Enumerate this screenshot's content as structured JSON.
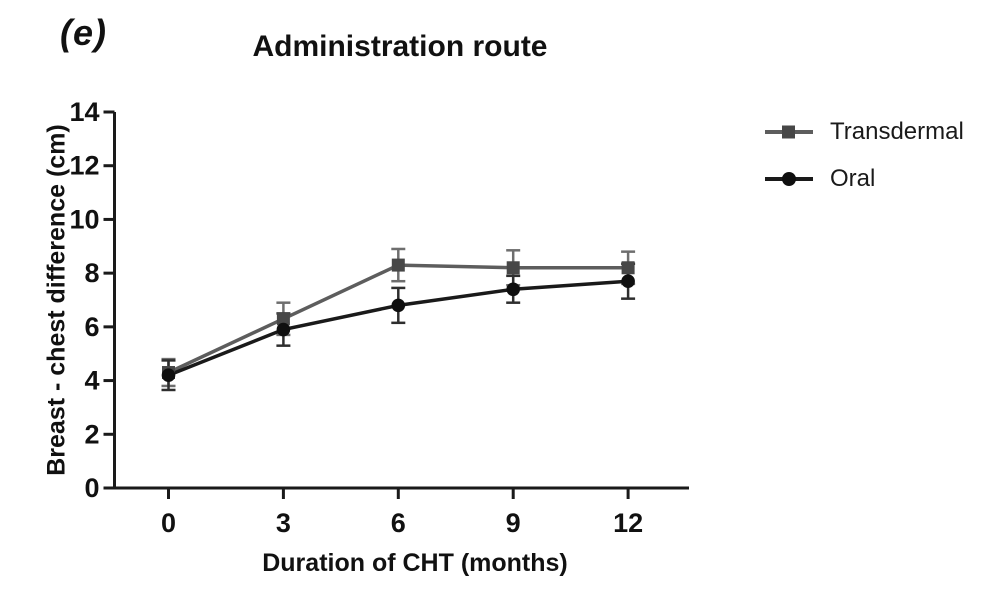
{
  "panel_label": "(e)",
  "chart_data": {
    "type": "line",
    "title": "Administration route",
    "xlabel": "Duration of CHT (months)",
    "ylabel": "Breast - chest difference (cm)",
    "x": [
      0,
      3,
      6,
      9,
      12
    ],
    "x_tick_labels": [
      "0",
      "3",
      "6",
      "9",
      "12"
    ],
    "y_ticks": [
      0,
      2,
      4,
      6,
      8,
      10,
      12,
      14
    ],
    "xlim": [
      0,
      12
    ],
    "ylim": [
      0,
      14
    ],
    "grid": false,
    "legend_position": "right",
    "error_bars": true,
    "series": [
      {
        "name": "Transdermal",
        "marker": "square",
        "marker_color": "#474747",
        "line_color": "#5d5d5d",
        "error_color": "#6e6e6e",
        "values": [
          4.3,
          6.3,
          8.3,
          8.2,
          8.2
        ],
        "errors": [
          0.5,
          0.6,
          0.6,
          0.65,
          0.6
        ]
      },
      {
        "name": "Oral",
        "marker": "circle",
        "marker_color": "#0f0f0f",
        "line_color": "#1a1a1a",
        "error_color": "#2e2e2e",
        "values": [
          4.2,
          5.9,
          6.8,
          7.4,
          7.7
        ],
        "errors": [
          0.55,
          0.6,
          0.65,
          0.5,
          0.65
        ]
      }
    ],
    "axis_color": "#1a1a1a"
  }
}
